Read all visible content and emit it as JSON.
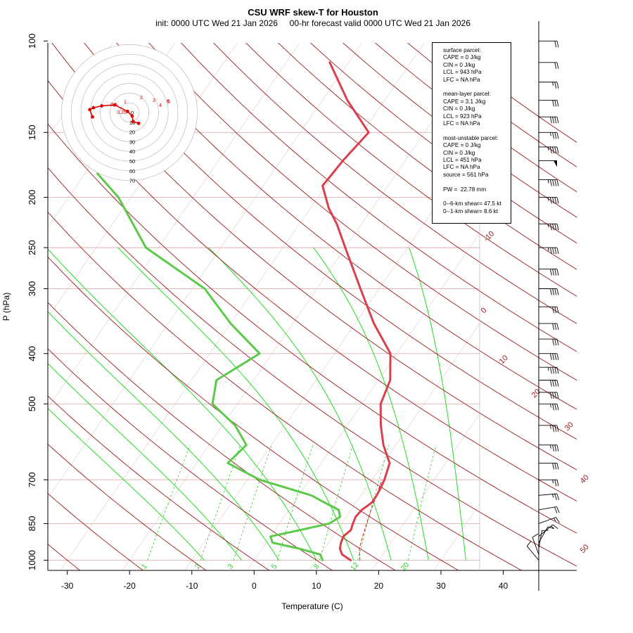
{
  "chart_data": {
    "type": "skew-t",
    "title": "CSU WRF skew-T for Houston",
    "subtitle": "init: 0000 UTC Wed 21 Jan 2026     00-hr forecast valid 0000 UTC Wed 21 Jan 2026",
    "xlabel": "Temperature (C)",
    "ylabel": "P (hPa)",
    "xlim": [
      -33,
      45
    ],
    "ylim": [
      1050,
      100
    ],
    "x_ticks": [
      "-30",
      "-20",
      "-10",
      "0",
      "10",
      "20",
      "30",
      "40"
    ],
    "pressure_ticks": [
      "100",
      "150",
      "200",
      "250",
      "300",
      "400",
      "500",
      "700",
      "850",
      "1000"
    ],
    "dry_adiabat_labels": [
      "-10",
      "0",
      "10",
      "20",
      "30",
      "40",
      "50"
    ],
    "mixing_ratio_labels": [
      "1",
      "2",
      "3",
      "5",
      "8",
      "12",
      "20"
    ],
    "colors": {
      "temperature": "#d9404e",
      "dewpoint": "#5cc94a",
      "dry_adiabat": "#9b1b1b",
      "moist_adiabat": "#22dd22",
      "mixing_ratio": "#33cc33",
      "isobar": "#d9a0a0",
      "parcel": "#d62020",
      "hodograph": "#e00000"
    },
    "temperature": [
      {
        "p": 1000,
        "t": 15.5
      },
      {
        "p": 975,
        "t": 13.5
      },
      {
        "p": 950,
        "t": 12.5
      },
      {
        "p": 925,
        "t": 12
      },
      {
        "p": 900,
        "t": 11.7
      },
      {
        "p": 875,
        "t": 12.2
      },
      {
        "p": 850,
        "t": 11.8
      },
      {
        "p": 825,
        "t": 11.5
      },
      {
        "p": 800,
        "t": 11.7
      },
      {
        "p": 775,
        "t": 12.5
      },
      {
        "p": 750,
        "t": 12.5
      },
      {
        "p": 725,
        "t": 12.3
      },
      {
        "p": 700,
        "t": 12
      },
      {
        "p": 650,
        "t": 11
      },
      {
        "p": 600,
        "t": 8
      },
      {
        "p": 550,
        "t": 5.4
      },
      {
        "p": 500,
        "t": 3
      },
      {
        "p": 450,
        "t": 1.9
      },
      {
        "p": 400,
        "t": -1
      },
      {
        "p": 350,
        "t": -7
      },
      {
        "p": 300,
        "t": -13
      },
      {
        "p": 250,
        "t": -20
      },
      {
        "p": 225,
        "t": -24
      },
      {
        "p": 210,
        "t": -27
      },
      {
        "p": 190,
        "t": -30.5
      },
      {
        "p": 170,
        "t": -30
      },
      {
        "p": 150,
        "t": -29
      },
      {
        "p": 130,
        "t": -36
      },
      {
        "p": 110,
        "t": -43
      }
    ],
    "dewpoint": [
      {
        "p": 1000,
        "t": 11
      },
      {
        "p": 975,
        "t": 10
      },
      {
        "p": 950,
        "t": 6
      },
      {
        "p": 925,
        "t": 1
      },
      {
        "p": 900,
        "t": 0
      },
      {
        "p": 875,
        "t": 4
      },
      {
        "p": 850,
        "t": 8
      },
      {
        "p": 825,
        "t": 9
      },
      {
        "p": 800,
        "t": 8
      },
      {
        "p": 775,
        "t": 5
      },
      {
        "p": 750,
        "t": 2
      },
      {
        "p": 700,
        "t": -8
      },
      {
        "p": 650,
        "t": -15
      },
      {
        "p": 600,
        "t": -14
      },
      {
        "p": 550,
        "t": -18
      },
      {
        "p": 500,
        "t": -24
      },
      {
        "p": 450,
        "t": -26
      },
      {
        "p": 400,
        "t": -22
      },
      {
        "p": 350,
        "t": -30
      },
      {
        "p": 300,
        "t": -38
      },
      {
        "p": 250,
        "t": -52
      },
      {
        "p": 200,
        "t": -62
      },
      {
        "p": 180,
        "t": -68
      }
    ],
    "parcel_trace": [
      {
        "p": 1000,
        "t": 17
      },
      {
        "p": 950,
        "t": 15.6
      },
      {
        "p": 900,
        "t": 14.8
      },
      {
        "p": 850,
        "t": 14
      },
      {
        "p": 800,
        "t": 13.2
      },
      {
        "p": 750,
        "t": 12.5
      },
      {
        "p": 700,
        "t": 11.6
      }
    ],
    "hodograph": {
      "ring_labels": [
        "0",
        "10",
        "20",
        "30",
        "40",
        "50",
        "60",
        "70"
      ],
      "point_labels": [
        "0.5",
        "0.25",
        "1",
        "2",
        "3",
        "4",
        "5",
        "6"
      ],
      "points": [
        {
          "u": 4,
          "v": 2
        },
        {
          "u": 1,
          "v": 10
        },
        {
          "u": 5,
          "v": 12
        },
        {
          "u": 14,
          "v": 14
        },
        {
          "u": 28,
          "v": 15
        },
        {
          "u": 42,
          "v": 8
        },
        {
          "u": 47,
          "v": 3
        },
        {
          "u": 48,
          "v": -3
        },
        {
          "u": 54,
          "v": -5
        }
      ]
    },
    "wind_barbs_kt": [
      {
        "p": 1000,
        "dir": 140,
        "spd": 10
      },
      {
        "p": 975,
        "dir": 160,
        "spd": 10
      },
      {
        "p": 950,
        "dir": 190,
        "spd": 10
      },
      {
        "p": 925,
        "dir": 210,
        "spd": 10
      },
      {
        "p": 900,
        "dir": 230,
        "spd": 15
      },
      {
        "p": 850,
        "dir": 250,
        "spd": 15
      },
      {
        "p": 800,
        "dir": 260,
        "spd": 20
      },
      {
        "p": 750,
        "dir": 265,
        "spd": 25
      },
      {
        "p": 700,
        "dir": 270,
        "spd": 25
      },
      {
        "p": 650,
        "dir": 270,
        "spd": 30
      },
      {
        "p": 600,
        "dir": 270,
        "spd": 35
      },
      {
        "p": 550,
        "dir": 270,
        "spd": 35
      },
      {
        "p": 500,
        "dir": 270,
        "spd": 35
      },
      {
        "p": 475,
        "dir": 270,
        "spd": 40
      },
      {
        "p": 450,
        "dir": 270,
        "spd": 40
      },
      {
        "p": 425,
        "dir": 270,
        "spd": 45
      },
      {
        "p": 400,
        "dir": 270,
        "spd": 40
      },
      {
        "p": 375,
        "dir": 270,
        "spd": 30
      },
      {
        "p": 350,
        "dir": 270,
        "spd": 30
      },
      {
        "p": 325,
        "dir": 270,
        "spd": 30
      },
      {
        "p": 300,
        "dir": 270,
        "spd": 40
      },
      {
        "p": 275,
        "dir": 270,
        "spd": 40
      },
      {
        "p": 250,
        "dir": 270,
        "spd": 45
      },
      {
        "p": 225,
        "dir": 270,
        "spd": 45
      },
      {
        "p": 200,
        "dir": 270,
        "spd": 45
      },
      {
        "p": 185,
        "dir": 270,
        "spd": 45
      },
      {
        "p": 170,
        "dir": 270,
        "spd": 50
      },
      {
        "p": 160,
        "dir": 270,
        "spd": 45
      },
      {
        "p": 150,
        "dir": 270,
        "spd": 35
      },
      {
        "p": 140,
        "dir": 270,
        "spd": 40
      },
      {
        "p": 130,
        "dir": 270,
        "spd": 30
      },
      {
        "p": 120,
        "dir": 270,
        "spd": 25
      },
      {
        "p": 110,
        "dir": 270,
        "spd": 20
      },
      {
        "p": 100,
        "dir": 270,
        "spd": 20
      }
    ]
  },
  "info_box": {
    "lines": [
      "surface parcel:",
      "CAPE = 0 J/kg",
      "CIN = 0 J/kg",
      "LCL = 943 hPa",
      "LFC = NA hPa",
      "",
      "mean-layer parcel:",
      "CAPE = 3.1 J/kg",
      "CIN = 0 J/kg",
      "LCL = 923 hPa",
      "LFC = NA hPa",
      "",
      "most-unstable parcel:",
      "CAPE = 0 J/kg",
      "CIN = 0 J/kg",
      "LCL = 451 hPa",
      "LFC = NA hPa",
      "source = 561 hPa",
      "",
      "PW =  22.78 mm",
      "",
      "0--6-km shear= 47.5 kt",
      "0--1-km shear= 8.6 kt"
    ]
  }
}
